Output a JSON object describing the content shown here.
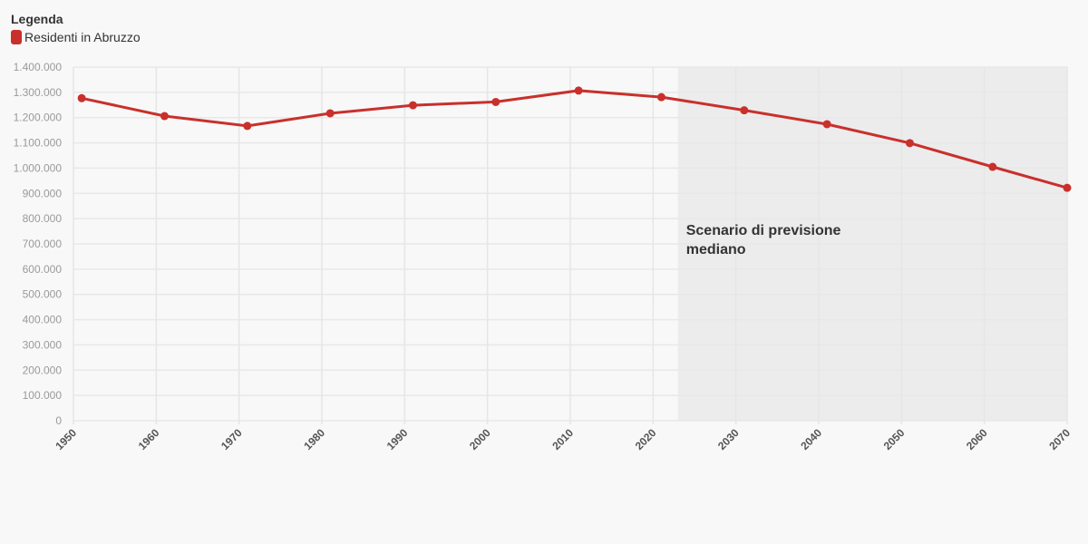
{
  "legend": {
    "title": "Legenda",
    "items": [
      {
        "label": "Residenti in Abruzzo",
        "color": "#c9302c"
      }
    ]
  },
  "chart_data": {
    "type": "line",
    "title": "",
    "xlabel": "",
    "ylabel": "",
    "x": [
      1951,
      1961,
      1971,
      1981,
      1991,
      2001,
      2011,
      2021,
      2031,
      2041,
      2051,
      2061,
      2070
    ],
    "xlim": [
      1950,
      2070
    ],
    "x_ticks": [
      "1950",
      "1960",
      "1970",
      "1980",
      "1990",
      "2000",
      "2010",
      "2020",
      "2030",
      "2040",
      "2050",
      "2060",
      "2070"
    ],
    "ylim": [
      0,
      1400000
    ],
    "y_ticks": [
      "0",
      "100.000",
      "200.000",
      "300.000",
      "400.000",
      "500.000",
      "600.000",
      "700.000",
      "800.000",
      "900.000",
      "1.000.000",
      "1.100.000",
      "1.200.000",
      "1.300.000",
      "1.400.000"
    ],
    "grid": true,
    "legend_position": "top-left",
    "series": [
      {
        "name": "Residenti in Abruzzo",
        "color": "#c9302c",
        "values": [
          1277000,
          1206000,
          1167000,
          1217000,
          1249000,
          1262000,
          1307000,
          1281000,
          1229000,
          1174000,
          1099000,
          1005000,
          922000
        ]
      }
    ],
    "shaded_region": {
      "x_start": 2023,
      "x_end": 2070,
      "color": "#ececec",
      "label_lines": [
        "Scenario di previsione",
        "mediano"
      ]
    }
  }
}
